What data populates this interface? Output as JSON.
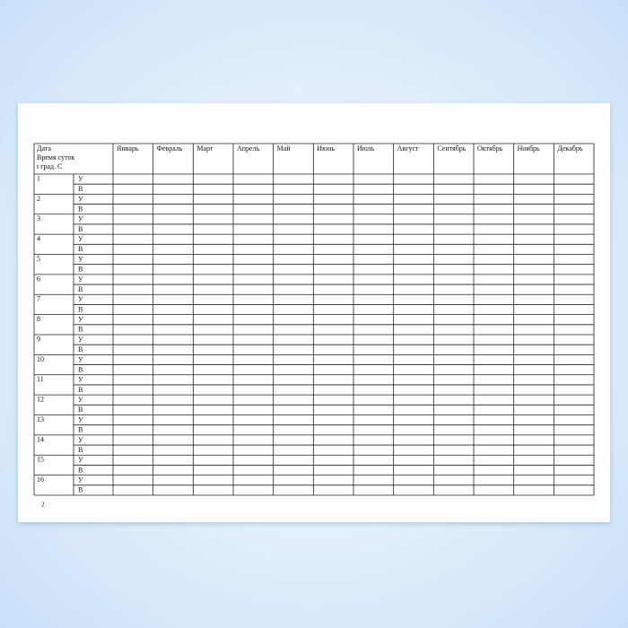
{
  "table": {
    "header_lines": [
      "Дата",
      "Время суток",
      "t град. С"
    ],
    "months": [
      "Январь",
      "Февраль",
      "Март",
      "Апрель",
      "Май",
      "Июнь",
      "Июль",
      "Август",
      "Сентябрь",
      "Октябрь",
      "Ноябрь",
      "Декабрь"
    ],
    "rows": [
      {
        "day": "1",
        "times": [
          "У",
          "В"
        ]
      },
      {
        "day": "2",
        "times": [
          "У",
          "В"
        ]
      },
      {
        "day": "3",
        "times": [
          "У",
          "В"
        ]
      },
      {
        "day": "4",
        "times": [
          "У",
          "В"
        ]
      },
      {
        "day": "5",
        "times": [
          "У",
          "В"
        ]
      },
      {
        "day": "6",
        "times": [
          "У",
          "В"
        ]
      },
      {
        "day": "7",
        "times": [
          "У",
          "В"
        ]
      },
      {
        "day": "8",
        "times": [
          "У",
          "В"
        ]
      },
      {
        "day": "9",
        "times": [
          "У",
          "В"
        ]
      },
      {
        "day": "10",
        "times": [
          "У",
          "В"
        ]
      },
      {
        "day": "11",
        "times": [
          "У",
          "В"
        ]
      },
      {
        "day": "12",
        "times": [
          "У",
          "В"
        ]
      },
      {
        "day": "13",
        "times": [
          "У",
          "В"
        ]
      },
      {
        "day": "14",
        "times": [
          "У",
          "В"
        ]
      },
      {
        "day": "15",
        "times": [
          "У",
          "В"
        ]
      },
      {
        "day": "16",
        "times": [
          "У",
          "В"
        ]
      }
    ]
  },
  "footer": {
    "page_number": "2"
  }
}
